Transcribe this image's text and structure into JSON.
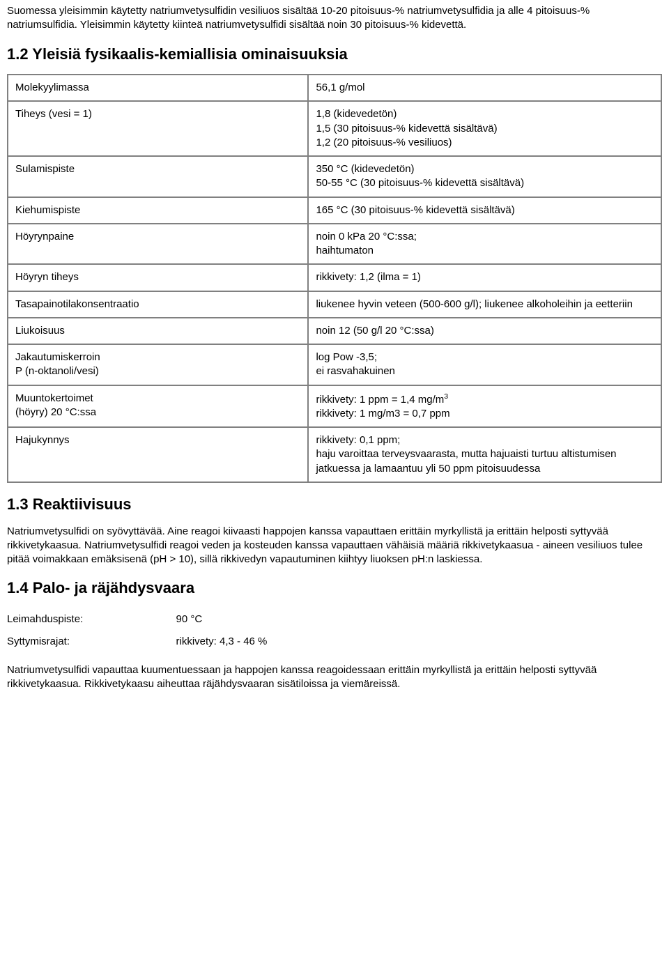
{
  "intro": "Suomessa yleisimmin käytetty natriumvetysulfidin vesiliuos sisältää 10-20 pitoisuus-% natriumvetysulfidia ja alle 4 pitoisuus-% natriumsulfidia. Yleisimmin käytetty kiinteä natriumvetysulfidi sisältää noin 30 pitoisuus-% kidevettä.",
  "section12_title": "1.2 Yleisiä fysikaalis-kemiallisia ominaisuuksia",
  "props": {
    "mw_label": "Molekyylimassa",
    "mw_value": "56,1 g/mol",
    "density_label": "Tiheys (vesi = 1)",
    "density_value": "1,8 (kidevedetön)\n1,5 (30 pitoisuus-% kidevettä sisältävä)\n1,2 (20 pitoisuus-% vesiliuos)",
    "mp_label": "Sulamispiste",
    "mp_value": "350 °C (kidevedetön)\n50-55 °C (30 pitoisuus-% kidevettä sisältävä)",
    "bp_label": "Kiehumispiste",
    "bp_value": "165 °C (30 pitoisuus-% kidevettä sisältävä)",
    "vp_label": "Höyrynpaine",
    "vp_value": "noin 0 kPa 20 °C:ssa;\nhaihtumaton",
    "vd_label": "Höyryn tiheys",
    "vd_value": "rikkivety: 1,2 (ilma = 1)",
    "eq_label": "Tasapainotilakonsentraatio",
    "eq_value": "liukenee hyvin veteen (500-600 g/l); liukenee alkoholeihin ja eetteriin",
    "sol_label": "Liukoisuus",
    "sol_value": "noin 12 (50 g/l 20 °C:ssa)",
    "part_label": "Jakautumiskerroin\nP (n-oktanoli/vesi)",
    "part_value": "log Pow -3,5;\nei rasvahakuinen",
    "conv_label": "Muuntokertoimet\n(höyry) 20 °C:ssa",
    "conv_value_pre": "rikkivety: 1 ppm = 1,4 mg/m",
    "conv_value_sup": "3",
    "conv_value_post": "\nrikkivety: 1 mg/m3 = 0,7 ppm",
    "odor_label": "Hajukynnys",
    "odor_value": "rikkivety: 0,1 ppm;\nhaju varoittaa terveysvaarasta, mutta hajuaisti turtuu altistumisen jatkuessa ja lamaantuu yli 50 ppm pitoisuudessa"
  },
  "section13_title": "1.3 Reaktiivisuus",
  "reactivity": "Natriumvetysulfidi on syövyttävää. Aine reagoi kiivaasti happojen kanssa vapauttaen erittäin myrkyllistä ja erittäin helposti syttyvää rikkivetykaasua. Natriumvetysulfidi reagoi veden ja kosteuden kanssa vapauttaen vähäisiä määriä rikkivetykaasua - aineen vesiliuos tulee pitää voimakkaan emäksisenä (pH > 10), sillä rikkivedyn vapautuminen kiihtyy liuoksen pH:n laskiessa.",
  "section14_title": "1.4 Palo- ja räjähdysvaara",
  "flash_label": "Leimahduspiste:",
  "flash_value": "90 °C",
  "ign_label": "Syttymisrajat:",
  "ign_value": "rikkivety: 4,3 - 46 %",
  "fire_text": "Natriumvetysulfidi vapauttaa kuumentuessaan ja happojen kanssa reagoidessaan erittäin myrkyllistä ja erittäin helposti syttyvää rikkivetykaasua. Rikkivetykaasu aiheuttaa räjähdysvaaran sisätiloissa ja viemäreissä."
}
